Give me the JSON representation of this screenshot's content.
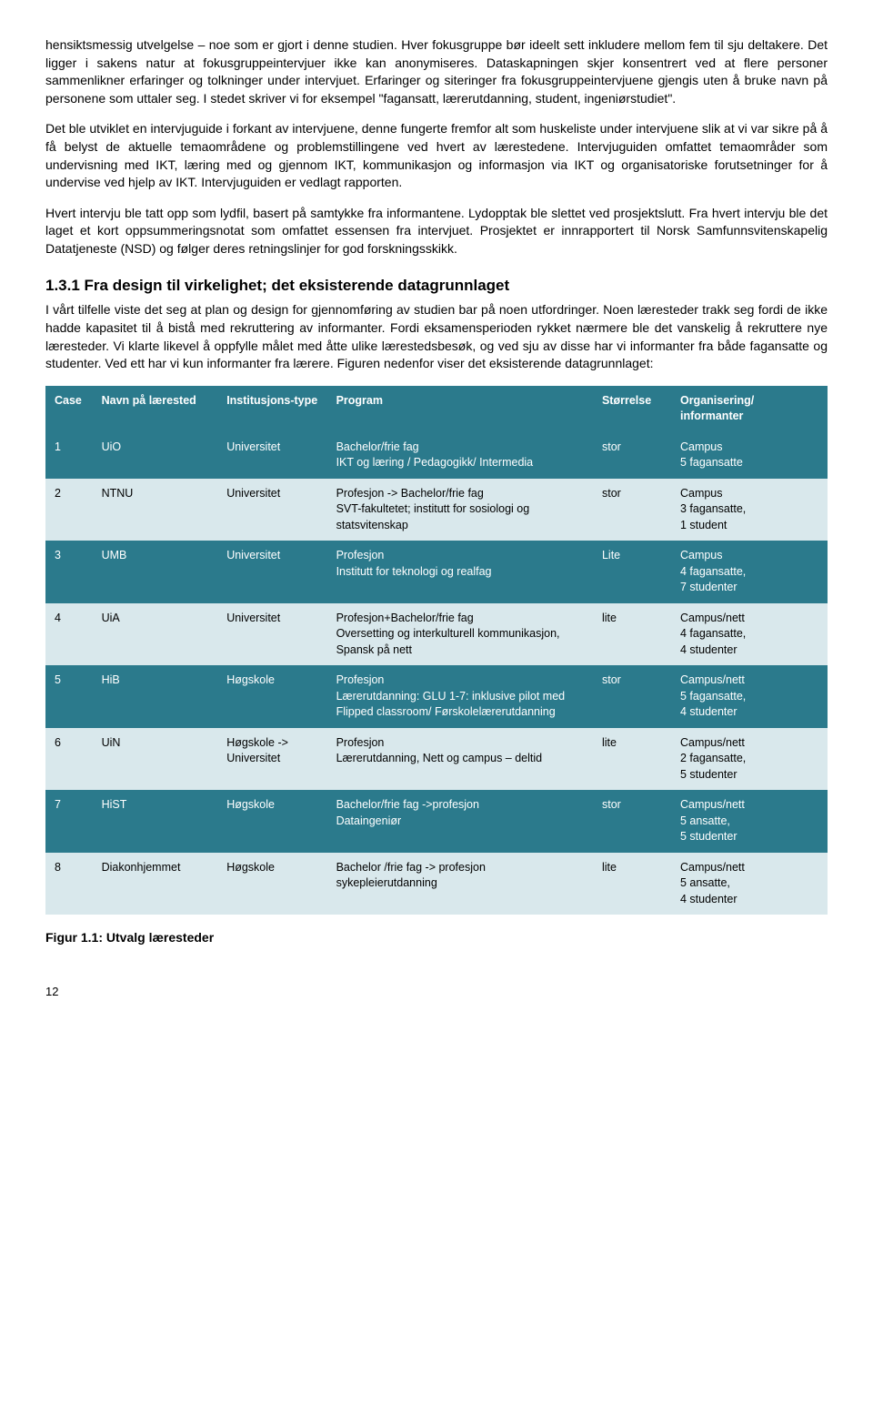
{
  "paragraphs": {
    "p1": "hensiktsmessig utvelgelse – noe som er gjort i denne studien. Hver fokusgruppe bør ideelt sett inkludere mellom fem til sju deltakere. Det ligger i sakens natur at fokusgruppeintervjuer ikke kan anonymiseres. Dataskapningen skjer konsentrert ved at flere personer sammenlikner erfaringer og tolkninger under intervjuet. Erfaringer og siteringer fra fokusgruppeintervjuene gjengis uten å bruke navn på personene som uttaler seg. I stedet skriver vi for eksempel \"fagansatt, lærerutdanning, student, ingeniørstudiet\".",
    "p2": "Det ble utviklet en intervjuguide i forkant av intervjuene, denne fungerte fremfor alt som huskeliste under intervjuene slik at vi var sikre på å få belyst de aktuelle temaområdene og problemstillingene ved hvert av lærestedene. Intervjuguiden omfattet temaområder som undervisning med IKT, læring med og gjennom IKT, kommunikasjon og informasjon via IKT og organisatoriske forutsetninger for å undervise ved hjelp av IKT. Intervjuguiden er vedlagt rapporten.",
    "p3": "Hvert intervju ble tatt opp som lydfil, basert på samtykke fra informantene. Lydopptak ble slettet ved prosjektslutt. Fra hvert intervju ble det laget et kort oppsummeringsnotat som omfattet essensen fra intervjuet. Prosjektet er innrapportert til Norsk Samfunnsvitenskapelig Datatjeneste (NSD) og følger deres retningslinjer for god forskningsskikk.",
    "h3": "1.3.1    Fra design til virkelighet; det eksisterende datagrunnlaget",
    "p4": "I vårt tilfelle viste det seg at plan og design for gjennomføring av studien bar på noen utfordringer. Noen læresteder trakk seg fordi de ikke hadde kapasitet til å bistå med rekruttering av informanter. Fordi eksamensperioden rykket nærmere ble det vanskelig å rekruttere nye læresteder. Vi klarte likevel å oppfylle målet med åtte ulike lærestedsbesøk, og ved sju av disse har vi informanter fra både fagansatte og studenter. Ved ett har vi kun informanter fra lærere. Figuren nedenfor viser det eksisterende datagrunnlaget:"
  },
  "table": {
    "headers": {
      "case": "Case",
      "name": "Navn på lærested",
      "type": "Institusjons-type",
      "program": "Program",
      "size": "Størrelse",
      "org": "Organisering/ informanter"
    },
    "rows": [
      {
        "case": "1",
        "name": "UiO",
        "type": "Universitet",
        "program": "Bachelor/frie fag\nIKT og læring / Pedagogikk/ Intermedia",
        "size": "stor",
        "org": "Campus\n5 fagansatte"
      },
      {
        "case": "2",
        "name": "NTNU",
        "type": "Universitet",
        "program": "Profesjon -> Bachelor/frie fag\nSVT-fakultetet; institutt for sosiologi og statsvitenskap",
        "size": "stor",
        "org": "Campus\n3 fagansatte,\n1 student"
      },
      {
        "case": "3",
        "name": "UMB",
        "type": "Universitet",
        "program": "Profesjon\nInstitutt for teknologi og realfag",
        "size": "Lite",
        "org": "Campus\n4 fagansatte,\n7 studenter"
      },
      {
        "case": "4",
        "name": "UiA",
        "type": "Universitet",
        "program": "Profesjon+Bachelor/frie fag\nOversetting og interkulturell kommunikasjon, Spansk på nett",
        "size": "lite",
        "org": "Campus/nett\n4 fagansatte,\n4 studenter"
      },
      {
        "case": "5",
        "name": "HiB",
        "type": "Høgskole",
        "program": "Profesjon\nLærerutdanning: GLU 1-7: inklusive pilot med Flipped classroom/ Førskolelærerutdanning",
        "size": "stor",
        "org": "Campus/nett\n5 fagansatte,\n4 studenter"
      },
      {
        "case": "6",
        "name": "UiN",
        "type": "Høgskole -> Universitet",
        "program": "Profesjon\nLærerutdanning, Nett og campus – deltid",
        "size": "lite",
        "org": "Campus/nett\n2 fagansatte,\n5 studenter"
      },
      {
        "case": "7",
        "name": "HiST",
        "type": "Høgskole",
        "program": "Bachelor/frie fag ->profesjon\nDataingeniør",
        "size": "stor",
        "org": "Campus/nett\n5 ansatte,\n5 studenter"
      },
      {
        "case": "8",
        "name": "Diakonhjemmet",
        "type": "Høgskole",
        "program": "Bachelor /frie fag -> profesjon sykepleierutdanning",
        "size": "lite",
        "org": "Campus/nett\n5 ansatte,\n4 studenter"
      }
    ]
  },
  "caption": "Figur 1.1: Utvalg læresteder",
  "pageNumber": "12",
  "style": {
    "headerBg": "#2b7a8c",
    "lightBg": "#d9e8ec"
  }
}
